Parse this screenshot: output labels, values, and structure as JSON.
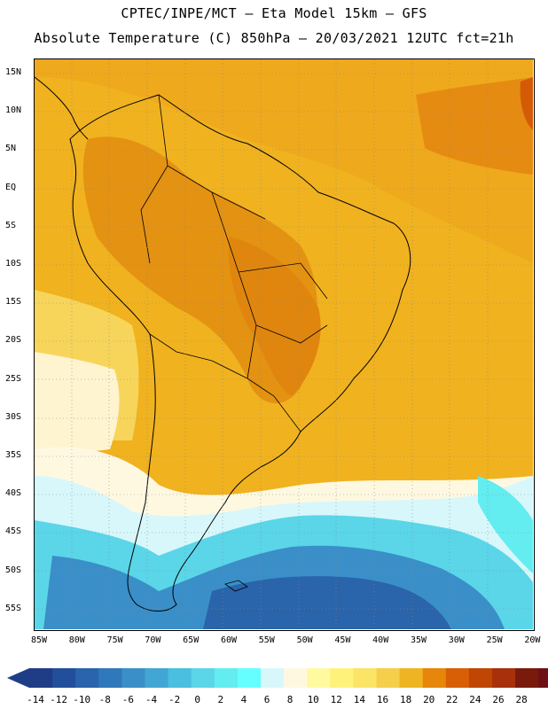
{
  "header": {
    "line1": "CPTEC/INPE/MCT –  Eta Model 15km – GFS",
    "line2": "Absolute Temperature (C) 850hPa – 20/03/2021 12UTC fct=21h"
  },
  "map": {
    "lat_labels": [
      "15N",
      "10N",
      "5N",
      "EQ",
      "5S",
      "10S",
      "15S",
      "20S",
      "25S",
      "30S",
      "35S",
      "40S",
      "45S",
      "50S",
      "55S"
    ],
    "lon_labels": [
      "85W",
      "80W",
      "75W",
      "70W",
      "65W",
      "60W",
      "55W",
      "50W",
      "45W",
      "40W",
      "35W",
      "30W",
      "25W",
      "20W"
    ],
    "lat_range": [
      15,
      -58
    ],
    "lon_range": [
      -86,
      -20
    ],
    "field": "temperature_850hPa_celsius"
  },
  "colorbar": {
    "labels": [
      "-14",
      "-12",
      "-10",
      "-8",
      "-6",
      "-4",
      "-2",
      "0",
      "2",
      "4",
      "6",
      "8",
      "10",
      "12",
      "14",
      "16",
      "18",
      "20",
      "22",
      "24",
      "26",
      "28"
    ],
    "colors": [
      "#1f3c87",
      "#234f9a",
      "#2a64ab",
      "#2f78ba",
      "#3a8fc8",
      "#42a6d4",
      "#4abfdf",
      "#5ad6e8",
      "#63edf0",
      "#66ffff",
      "#d8f7fb",
      "#fff8e1",
      "#fffaa0",
      "#fff27a",
      "#fbe466",
      "#f5cf4c",
      "#efb422",
      "#e6860a",
      "#d85f06",
      "#c04603",
      "#a8300a",
      "#7a1a0c",
      "#6d1016"
    ]
  }
}
